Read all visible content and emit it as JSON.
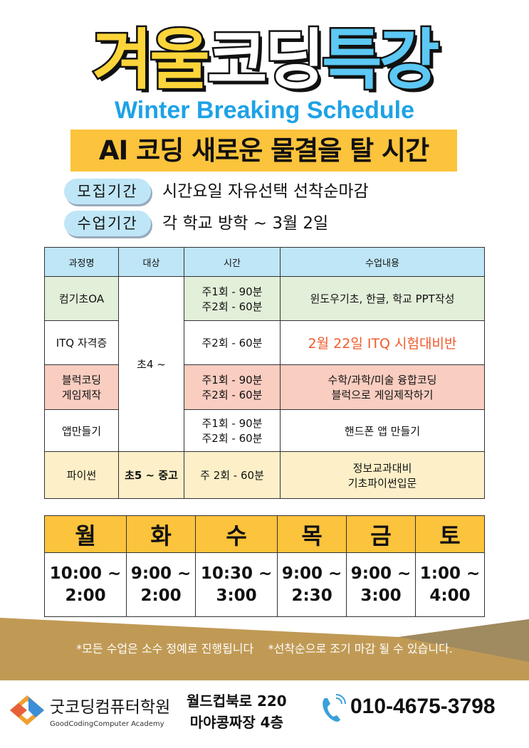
{
  "title": {
    "part1": "겨울",
    "part2": "코딩",
    "part3": "특강"
  },
  "subtitle": "Winter Breaking Schedule",
  "banner": "AI 코딩 새로운 물결을 탈 시간",
  "info": [
    {
      "label": "모집기간",
      "value": "시간요일 자유선택 선착순마감"
    },
    {
      "label": "수업기간",
      "value": "각 학교 방학 ~ 3월 2일"
    }
  ],
  "course_table": {
    "headers": [
      "과정명",
      "대상",
      "시간",
      "수업내용"
    ],
    "rows": [
      {
        "name": "컴기초OA",
        "target": "초4 ~",
        "time": "주1회 - 90분\n주2회 - 60분",
        "content": "윈도우기초, 한글, 학교 PPT작성"
      },
      {
        "name": "ITQ 자격증",
        "time": "주2회 - 60분",
        "content": "2월 22일 ITQ 시험대비반"
      },
      {
        "name": "블럭코딩\n게임제작",
        "time": "주1회 - 90분\n주2회 - 60분",
        "content": "수학/과학/미술 융합코딩\n블럭으로 게임제작하기"
      },
      {
        "name": "앱만들기",
        "time": "주1회 - 90분\n주2회 - 60분",
        "content": "핸드폰 앱 만들기"
      },
      {
        "name": "파이썬",
        "target": "초5 ~ 중고",
        "time": "주 2회 - 60분",
        "content": "정보교과대비\n기초파이썬입문"
      }
    ]
  },
  "week_table": {
    "days": [
      "월",
      "화",
      "수",
      "목",
      "금",
      "토"
    ],
    "hours": [
      "10:00 ~\n2:00",
      "9:00 ~\n2:00",
      "10:30 ~\n3:00",
      "9:00 ~\n2:30",
      "9:00 ~\n3:00",
      "1:00 ~\n4:00"
    ]
  },
  "notes": "*모든 수업은 소수 정예로 진행됩니다    *선착순으로 조기 마감 될 수 있습니다.",
  "footer": {
    "brand": "굿코딩컴퓨터학원",
    "brand_en": "GoodCodingComputer Academy",
    "address_line1": "월드컵북로 220",
    "address_line2": "마야콩짜장 4층",
    "phone": "010-4675-3798"
  },
  "colors": {
    "yellow": "#fcc33c",
    "light_blue": "#bfe6f7",
    "blue": "#1ea2e6",
    "gold": "#c09a55",
    "red": "#f05a2a"
  }
}
